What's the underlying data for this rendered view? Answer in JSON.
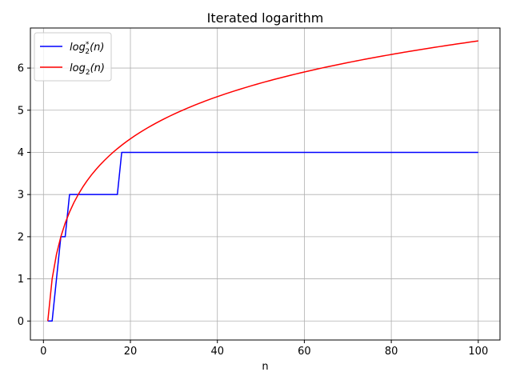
{
  "chart_data": {
    "type": "line",
    "title": "Iterated logarithm",
    "xlabel": "n",
    "ylabel": "",
    "xlim": [
      -3,
      105
    ],
    "ylim": [
      -0.45,
      6.95
    ],
    "xticks": [
      0,
      20,
      40,
      60,
      80,
      100
    ],
    "yticks": [
      0,
      1,
      2,
      3,
      4,
      5,
      6
    ],
    "grid": true,
    "legend_position": "top-left",
    "series": [
      {
        "name": "log*2(n)",
        "legend_main": "log",
        "legend_sub": "2",
        "legend_sup": "*",
        "legend_suffix": "(n)",
        "color": "#0000ff",
        "x": [
          1,
          2,
          3,
          4,
          5,
          6,
          7,
          8,
          9,
          10,
          11,
          12,
          13,
          14,
          15,
          16,
          17,
          18,
          100
        ],
        "y": [
          0,
          0,
          1,
          2,
          2,
          3,
          3,
          3,
          3,
          3,
          3,
          3,
          3,
          3,
          3,
          3,
          3,
          4,
          4
        ]
      },
      {
        "name": "log2(n)",
        "legend_main": "log",
        "legend_sub": "2",
        "legend_sup": "",
        "legend_suffix": "(n)",
        "color": "#ff0000",
        "function": "log2",
        "x_range": [
          1,
          100
        ]
      }
    ]
  }
}
